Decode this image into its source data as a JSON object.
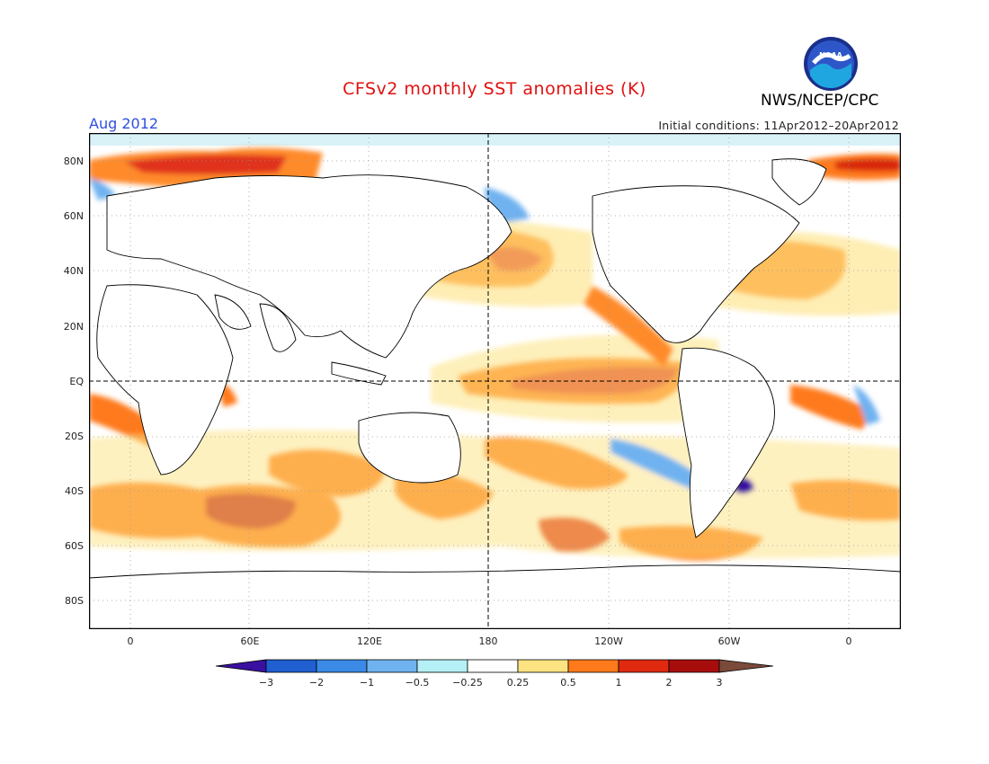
{
  "header": {
    "title": "CFSv2 monthly SST anomalies (K)",
    "month": "Aug 2012",
    "initial_conditions": "Initial conditions: 11Apr2012–20Apr2012",
    "agency": "NWS/NCEP/CPC",
    "logo_text": "NOAA"
  },
  "axes": {
    "lat_labels": [
      "80N",
      "60N",
      "40N",
      "20N",
      "EQ",
      "20S",
      "40S",
      "60S",
      "80S"
    ],
    "lon_labels": [
      "0",
      "60E",
      "120E",
      "180",
      "120W",
      "60W",
      "0"
    ]
  },
  "colorbar": {
    "labels": [
      "−3",
      "−2",
      "−1",
      "−0.5",
      "−0.25",
      "0.25",
      "0.5",
      "1",
      "2",
      "3"
    ],
    "colors": [
      "#3a10a0",
      "#1f5fd0",
      "#3a8ae6",
      "#6fb2f0",
      "#b4f0f5",
      "#ffffff",
      "#fde382",
      "#ff7a1a",
      "#e02a10",
      "#a80d0d",
      "#7a4a3a"
    ]
  },
  "colors": {
    "land": "#ffffff",
    "sea_ice": "#d8f2f8",
    "frame": "#000000"
  }
}
